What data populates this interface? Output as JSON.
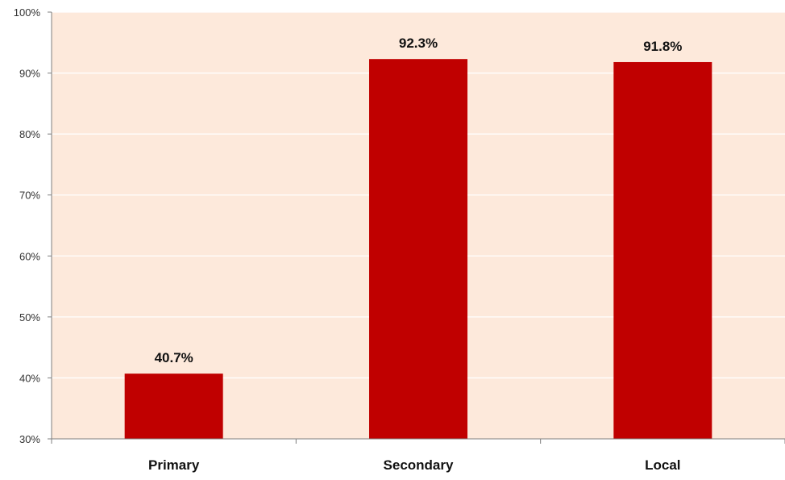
{
  "chart_data": {
    "type": "bar",
    "categories": [
      "Primary",
      "Secondary",
      "Local"
    ],
    "values": [
      40.7,
      92.3,
      91.8
    ],
    "data_labels": [
      "40.7%",
      "92.3%",
      "91.8%"
    ],
    "title": "",
    "xlabel": "",
    "ylabel": "",
    "ylim": [
      30,
      100
    ],
    "yticks": [
      30,
      40,
      50,
      60,
      70,
      80,
      90,
      100
    ],
    "ytick_labels": [
      "30%",
      "40%",
      "50%",
      "60%",
      "70%",
      "80%",
      "90%",
      "100%"
    ],
    "grid": true,
    "legend": "none",
    "colors": {
      "bar": "#c00000",
      "plot_background": "#fde9db",
      "gridline": "#ffffff",
      "axis": "#7f7f7f"
    }
  }
}
